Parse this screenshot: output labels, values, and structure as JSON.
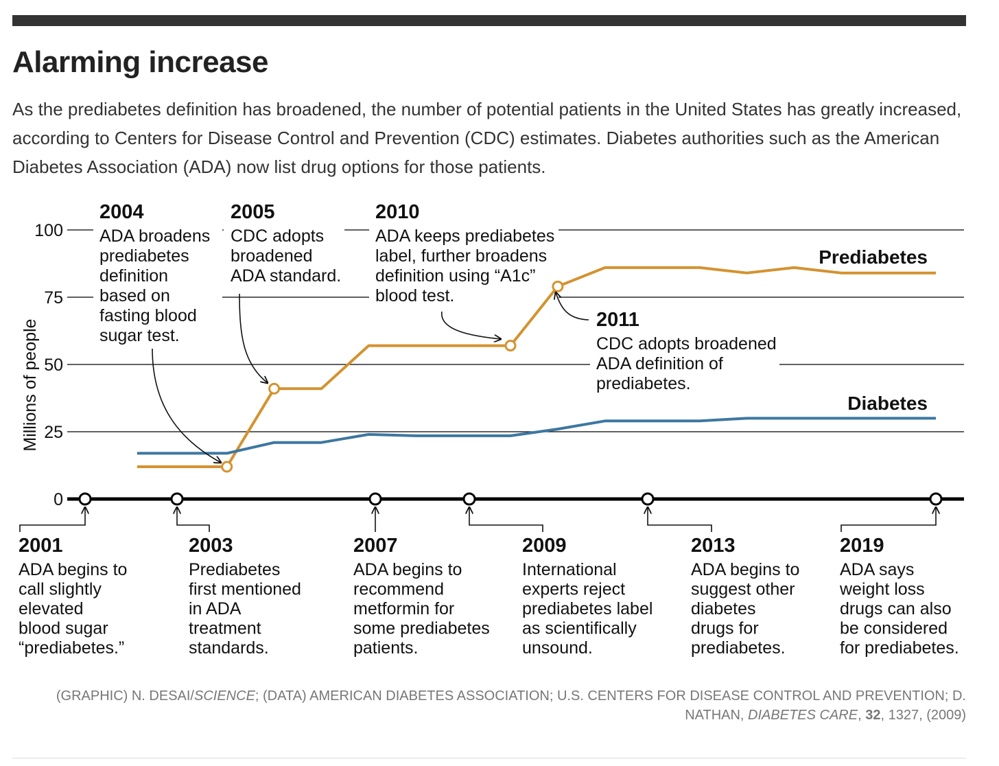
{
  "header": {
    "title": "Alarming increase",
    "subtitle": "As the prediabetes definition has broadened, the number of potential patients in the United States has greatly increased, according to Centers for Disease Control and Prevention (CDC) estimates. Diabetes authorities such as the American Diabetes Association (ADA) now list drug options for those patients."
  },
  "colors": {
    "prediabetes": "#d4922f",
    "diabetes": "#3d77a0",
    "axis": "#000000",
    "grid": "#000000"
  },
  "chart_data": {
    "type": "line",
    "ylabel": "Millions of people",
    "ylim": [
      0,
      100
    ],
    "yticks": [
      0,
      25,
      50,
      75,
      100
    ],
    "xlim": [
      2001,
      2019
    ],
    "grid": true,
    "series": [
      {
        "name": "Prediabetes",
        "color": "#d4922f",
        "points": [
          [
            2002.1,
            12
          ],
          [
            2004,
            12
          ],
          [
            2005,
            41
          ],
          [
            2006,
            41
          ],
          [
            2007,
            57
          ],
          [
            2010,
            57
          ],
          [
            2011,
            79
          ],
          [
            2012,
            86
          ],
          [
            2014,
            86
          ],
          [
            2015,
            84
          ],
          [
            2016,
            86
          ],
          [
            2017,
            84
          ],
          [
            2019,
            84
          ]
        ]
      },
      {
        "name": "Diabetes",
        "color": "#3d77a0",
        "points": [
          [
            2002.1,
            17
          ],
          [
            2004,
            17
          ],
          [
            2005,
            21
          ],
          [
            2006,
            21
          ],
          [
            2007,
            24
          ],
          [
            2008,
            23.5
          ],
          [
            2010,
            23.5
          ],
          [
            2011,
            26
          ],
          [
            2012,
            29
          ],
          [
            2014,
            29
          ],
          [
            2015,
            30
          ],
          [
            2017,
            30
          ],
          [
            2019,
            30
          ]
        ]
      }
    ],
    "top_events": [
      {
        "year": "2004",
        "lines": [
          "ADA broadens",
          "prediabetes",
          "definition",
          "based on",
          "fasting blood",
          "sugar test."
        ]
      },
      {
        "year": "2005",
        "lines": [
          "CDC adopts",
          "broadened",
          "ADA standard."
        ]
      },
      {
        "year": "2010",
        "lines": [
          "ADA keeps prediabetes",
          "label, further broadens",
          "definition using “A1c”",
          "blood test."
        ]
      },
      {
        "year": "2011",
        "lines": [
          "CDC adopts broadened",
          "ADA definition of",
          "prediabetes."
        ]
      }
    ],
    "bottom_events": [
      {
        "year": "2001",
        "lines": [
          "ADA begins to",
          "call slightly",
          "elevated",
          "blood sugar",
          "“prediabetes.”"
        ]
      },
      {
        "year": "2003",
        "lines": [
          "Prediabetes",
          "first mentioned",
          "in ADA",
          "treatment",
          "standards."
        ]
      },
      {
        "year": "2007",
        "lines": [
          "ADA begins to",
          "recommend",
          "metformin for",
          "some prediabetes",
          "patients."
        ]
      },
      {
        "year": "2009",
        "lines": [
          "International",
          "experts reject",
          "prediabetes label",
          "as scientifically",
          "unsound."
        ]
      },
      {
        "year": "2013",
        "lines": [
          "ADA begins to",
          "suggest other",
          "diabetes",
          "drugs for",
          "prediabetes."
        ]
      },
      {
        "year": "2019",
        "lines": [
          "ADA says",
          "weight loss",
          "drugs can also",
          "be considered",
          "for prediabetes."
        ]
      }
    ]
  },
  "credit": {
    "graphic_prefix": "(GRAPHIC) N. DESAI/",
    "graphic_source": "SCIENCE",
    "data_prefix": "; (DATA) AMERICAN DIABETES ASSOCIATION; U.S. CENTERS FOR DISEASE CONTROL AND PREVENTION; D. NATHAN, ",
    "journal": "DIABETES CARE",
    "comma": ", ",
    "volume": "32",
    "citation_rest": ", 1327, (2009)"
  }
}
